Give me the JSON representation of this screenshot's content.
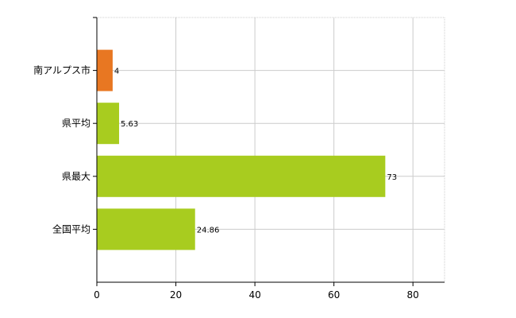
{
  "chart_data": {
    "type": "bar",
    "orientation": "horizontal",
    "categories": [
      "南アルプス市",
      "県平均",
      "県最大",
      "全国平均"
    ],
    "values": [
      4,
      5.63,
      73,
      24.86
    ],
    "data_labels": [
      "4",
      "5.63",
      "73",
      "24.86"
    ],
    "bar_colors": [
      "#e87722",
      "#a8cc1f",
      "#a8cc1f",
      "#a8cc1f"
    ],
    "x_ticks": [
      "0",
      "20",
      "40",
      "60",
      "80"
    ],
    "xlim": [
      0,
      88
    ],
    "grid": true,
    "grid_color": "#cccccc",
    "title": "",
    "xlabel": "",
    "ylabel": ""
  }
}
